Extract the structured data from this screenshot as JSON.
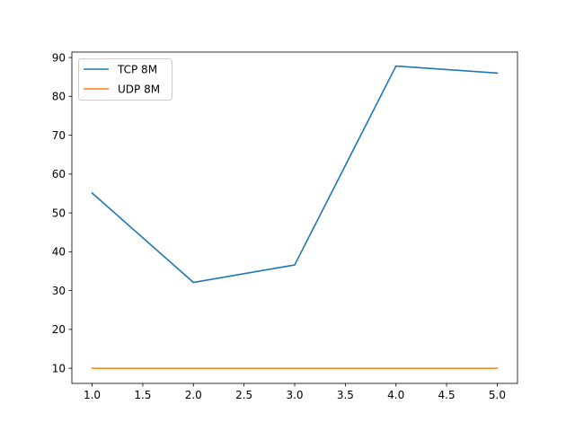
{
  "chart_data": {
    "type": "line",
    "title": "",
    "xlabel": "",
    "ylabel": "",
    "xlim": [
      0.8,
      5.2
    ],
    "ylim": [
      6.1,
      91.4
    ],
    "xticks": [
      1.0,
      1.5,
      2.0,
      2.5,
      3.0,
      3.5,
      4.0,
      4.5,
      5.0
    ],
    "xtick_labels": [
      "1.0",
      "1.5",
      "2.0",
      "2.5",
      "3.0",
      "3.5",
      "4.0",
      "4.5",
      "5.0"
    ],
    "yticks": [
      10,
      20,
      30,
      40,
      50,
      60,
      70,
      80,
      90
    ],
    "ytick_labels": [
      "10",
      "20",
      "30",
      "40",
      "50",
      "60",
      "70",
      "80",
      "90"
    ],
    "grid": false,
    "legend_position": "top-left",
    "x": [
      1,
      2,
      3,
      4,
      5
    ],
    "series": [
      {
        "name": "TCP 8M",
        "color": "#1f77b4",
        "values": [
          55.1,
          32.1,
          36.6,
          87.8,
          86.0
        ]
      },
      {
        "name": "UDP 8M",
        "color": "#ff7f0e",
        "values": [
          10.0,
          10.0,
          10.0,
          10.0,
          10.0
        ]
      }
    ]
  }
}
